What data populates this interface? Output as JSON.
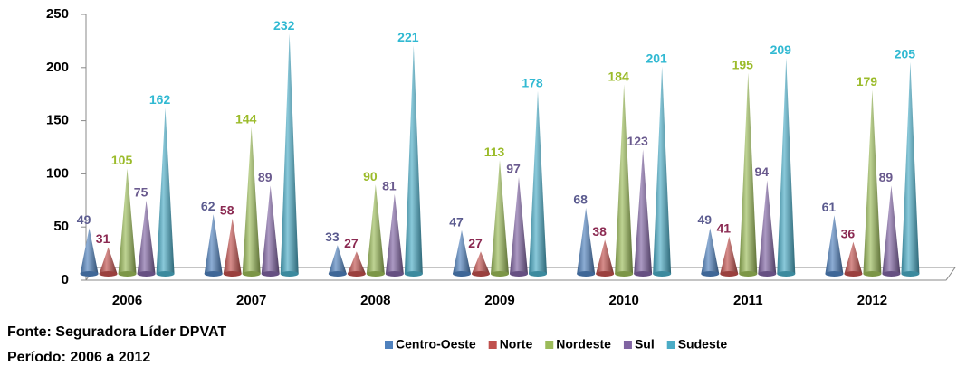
{
  "chart_data": {
    "type": "bar",
    "categories": [
      "2006",
      "2007",
      "2008",
      "2009",
      "2010",
      "2011",
      "2012"
    ],
    "series": [
      {
        "name": "Centro-Oeste",
        "color": "#4f81bd",
        "label_color": "#5b5b8f",
        "values": [
          49,
          62,
          33,
          47,
          68,
          49,
          61
        ]
      },
      {
        "name": "Norte",
        "color": "#c0504d",
        "label_color": "#8b2a52",
        "values": [
          31,
          58,
          27,
          27,
          38,
          41,
          36
        ]
      },
      {
        "name": "Nordeste",
        "color": "#9bbb59",
        "label_color": "#9bbb2a",
        "values": [
          105,
          144,
          90,
          113,
          184,
          195,
          179
        ]
      },
      {
        "name": "Sul",
        "color": "#8064a2",
        "label_color": "#6a5a8e",
        "values": [
          75,
          89,
          81,
          97,
          123,
          94,
          89
        ]
      },
      {
        "name": "Sudeste",
        "color": "#4bacc6",
        "label_color": "#31b9d2",
        "values": [
          162,
          232,
          221,
          178,
          201,
          209,
          205
        ]
      }
    ],
    "ylim": [
      0,
      250
    ],
    "yticks": [
      0,
      50,
      100,
      150,
      200,
      250
    ],
    "legend": "bottom",
    "source": [
      "Fonte: Seguradora Líder DPVAT",
      "Período: 2006 a 2012"
    ]
  }
}
